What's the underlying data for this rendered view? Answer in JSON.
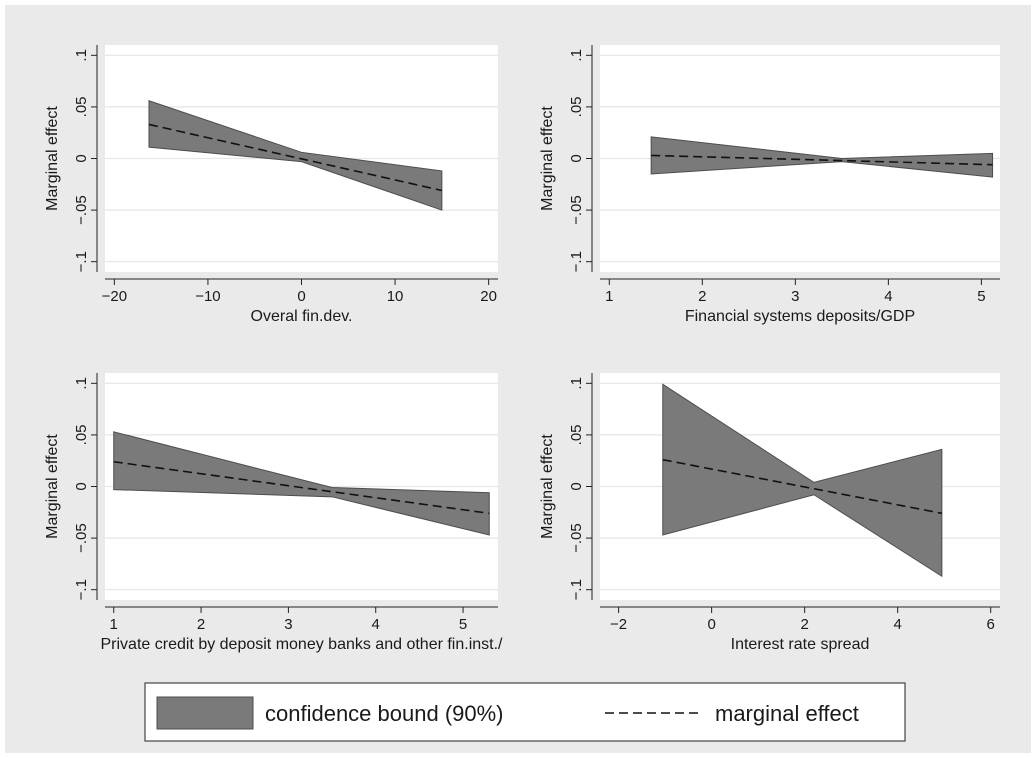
{
  "colors": {
    "background": "#eaeaea",
    "plot_region": "#ffffff",
    "band_fill": "#7a7a7a",
    "band_stroke": "#4d4d4d",
    "line": "#111111",
    "grid": "#e6e6e6",
    "axis": "#222222"
  },
  "legend": {
    "placement": "bottom-center",
    "items": [
      {
        "label": "confidence bound (90%)",
        "kind": "band"
      },
      {
        "label": "marginal effect",
        "kind": "dashed-line"
      }
    ]
  },
  "chart_data": [
    {
      "type": "area",
      "xlabel": "Overal fin.dev.",
      "ylabel": "Marginal effect",
      "xlim": [
        -21,
        21
      ],
      "ylim": [
        -0.11,
        0.11
      ],
      "xticks": [
        -20,
        -10,
        0,
        10,
        20
      ],
      "xtick_labels": [
        "−20",
        "−10",
        "0",
        "10",
        "20"
      ],
      "yticks": [
        -0.1,
        -0.05,
        0,
        0.05,
        0.1
      ],
      "ytick_labels": [
        "−.1",
        "−.05",
        "0",
        ".05",
        ".1"
      ],
      "grid": true,
      "series": [
        {
          "kind": "band",
          "x": [
            -16.3,
            0,
            15
          ],
          "lower": [
            0.011,
            -0.003,
            -0.05
          ],
          "upper": [
            0.056,
            0.006,
            -0.012
          ]
        },
        {
          "kind": "line",
          "x": [
            -16.3,
            15
          ],
          "y": [
            0.033,
            -0.031
          ]
        }
      ]
    },
    {
      "type": "area",
      "xlabel": "Financial systems deposits/GDP",
      "ylabel": "Marginal effect",
      "xlim": [
        0.9,
        5.2
      ],
      "ylim": [
        -0.11,
        0.11
      ],
      "xticks": [
        1,
        2,
        3,
        4,
        5
      ],
      "xtick_labels": [
        "1",
        "2",
        "3",
        "4",
        "5"
      ],
      "yticks": [
        -0.1,
        -0.05,
        0,
        0.05,
        0.1
      ],
      "ytick_labels": [
        "−.1",
        "−.05",
        "0",
        ".05",
        ".1"
      ],
      "grid": true,
      "series": [
        {
          "kind": "band",
          "x": [
            1.45,
            3.5,
            5.12
          ],
          "lower": [
            -0.015,
            -0.003,
            -0.018
          ],
          "upper": [
            0.021,
            0.0,
            0.005
          ]
        },
        {
          "kind": "line",
          "x": [
            1.45,
            5.12
          ],
          "y": [
            0.003,
            -0.006
          ]
        }
      ]
    },
    {
      "type": "area",
      "xlabel": "Private credit by deposit money banks and other fin.inst./",
      "ylabel": "Marginal effect",
      "xlim": [
        0.9,
        5.4
      ],
      "ylim": [
        -0.11,
        0.11
      ],
      "xticks": [
        1,
        2,
        3,
        4,
        5
      ],
      "xtick_labels": [
        "1",
        "2",
        "3",
        "4",
        "5"
      ],
      "yticks": [
        -0.1,
        -0.05,
        0,
        0.05,
        0.1
      ],
      "ytick_labels": [
        "−.1",
        "−.05",
        "0",
        ".05",
        ".1"
      ],
      "grid": true,
      "series": [
        {
          "kind": "band",
          "x": [
            1.0,
            3.5,
            5.3
          ],
          "lower": [
            -0.003,
            -0.01,
            -0.047
          ],
          "upper": [
            0.053,
            -0.001,
            -0.006
          ]
        },
        {
          "kind": "line",
          "x": [
            1.0,
            5.3
          ],
          "y": [
            0.024,
            -0.026
          ]
        }
      ]
    },
    {
      "type": "area",
      "xlabel": "Interest rate spread",
      "ylabel": "Marginal effect",
      "xlim": [
        -2.4,
        6.2
      ],
      "ylim": [
        -0.11,
        0.11
      ],
      "xticks": [
        -2,
        0,
        2,
        4,
        6
      ],
      "xtick_labels": [
        "−2",
        "0",
        "2",
        "4",
        "6"
      ],
      "yticks": [
        -0.1,
        -0.05,
        0,
        0.05,
        0.1
      ],
      "ytick_labels": [
        "−.1",
        "−.05",
        "0",
        ".05",
        ".1"
      ],
      "grid": true,
      "series": [
        {
          "kind": "band",
          "x": [
            -1.05,
            2.2,
            4.95
          ],
          "lower": [
            -0.047,
            -0.008,
            -0.087
          ],
          "upper": [
            0.099,
            0.004,
            0.036
          ]
        },
        {
          "kind": "line",
          "x": [
            -1.05,
            4.95
          ],
          "y": [
            0.026,
            -0.026
          ]
        }
      ]
    }
  ]
}
